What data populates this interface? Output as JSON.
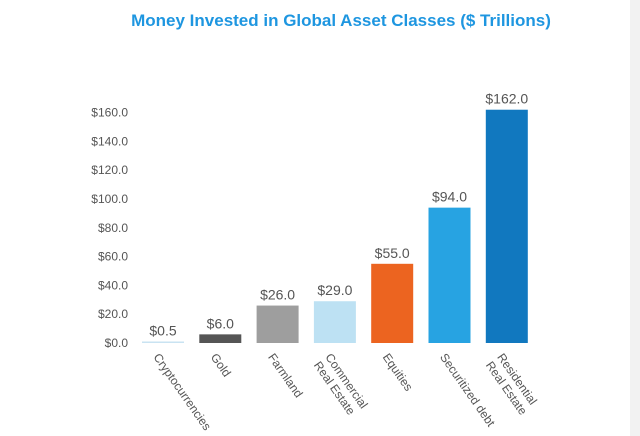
{
  "chart_data": {
    "type": "bar",
    "title": "Money Invested in Global Asset Classes ($ Trillions)",
    "xlabel": "",
    "ylabel": "",
    "ylim": [
      0,
      170
    ],
    "yticks": [
      0,
      20,
      40,
      60,
      80,
      100,
      120,
      140,
      160
    ],
    "ytick_labels": [
      "$0.0",
      "$20.0",
      "$40.0",
      "$60.0",
      "$80.0",
      "$100.0",
      "$120.0",
      "$140.0",
      "$160.0"
    ],
    "grid": false,
    "legend": "none",
    "categories": [
      [
        "Cryptocurrencies"
      ],
      [
        "Gold"
      ],
      [
        "Farmland"
      ],
      [
        "Commercial",
        "Real Estate"
      ],
      [
        "Equities"
      ],
      [
        "Securitized debt"
      ],
      [
        "Residential",
        "Real Estate"
      ]
    ],
    "values": [
      0.5,
      6.0,
      26.0,
      29.0,
      55.0,
      94.0,
      162.0
    ],
    "data_labels": [
      "$0.5",
      "$6.0",
      "$26.0",
      "$29.0",
      "$55.0",
      "$94.0",
      "$162.0"
    ],
    "colors": [
      "#c9e3f2",
      "#555555",
      "#9e9e9e",
      "#bde1f3",
      "#ec6420",
      "#27a3e2",
      "#1178bf"
    ],
    "title_color": "#1e96e0"
  }
}
